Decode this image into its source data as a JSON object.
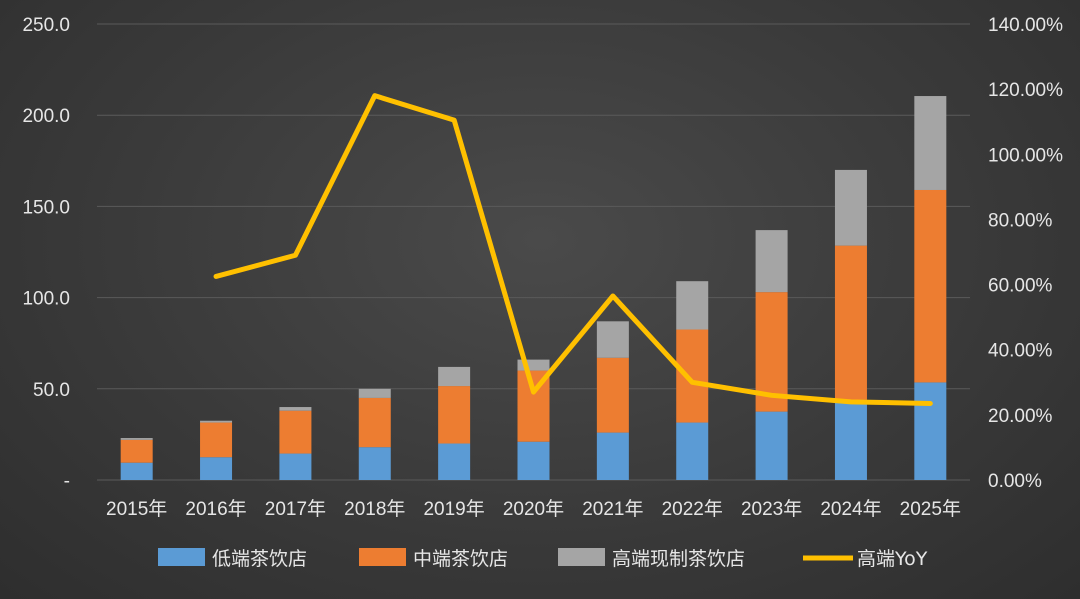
{
  "chart_data": {
    "type": "bar",
    "stacked": true,
    "categories": [
      "2015年",
      "2016年",
      "2017年",
      "2018年",
      "2019年",
      "2020年",
      "2021年",
      "2022年",
      "2023年",
      "2024年",
      "2025年"
    ],
    "series": [
      {
        "name": "低端茶饮店",
        "color": "#5b9bd5",
        "values": [
          9.5,
          12.5,
          14.5,
          18,
          20,
          21,
          26,
          31.5,
          37.5,
          44,
          53.5
        ]
      },
      {
        "name": "中端茶饮店",
        "color": "#ed7d31",
        "values": [
          12.5,
          19,
          23.5,
          27,
          31.5,
          39,
          41,
          51,
          65.5,
          84.5,
          105.5
        ]
      },
      {
        "name": "高端现制茶饮店",
        "color": "#a5a5a5",
        "values": [
          1,
          1,
          2,
          5,
          10.5,
          6,
          20,
          26.5,
          34,
          41.5,
          51.5
        ]
      }
    ],
    "line_series": {
      "name": "高端YoY",
      "color": "#ffc000",
      "axis": "right",
      "values": [
        null,
        0.625,
        0.69,
        1.18,
        1.105,
        0.27,
        0.565,
        0.3,
        0.26,
        0.24,
        0.235
      ]
    },
    "yleft": {
      "ylim": [
        0,
        250
      ],
      "ticks": [
        "-",
        "50.0",
        "100.0",
        "150.0",
        "200.0",
        "250.0"
      ]
    },
    "yright": {
      "ylim": [
        0,
        1.4
      ],
      "ticks": [
        "0.00%",
        "20.00%",
        "40.00%",
        "60.00%",
        "80.00%",
        "100.00%",
        "120.00%",
        "140.00%"
      ]
    },
    "grid": true,
    "legend": "bottom"
  }
}
